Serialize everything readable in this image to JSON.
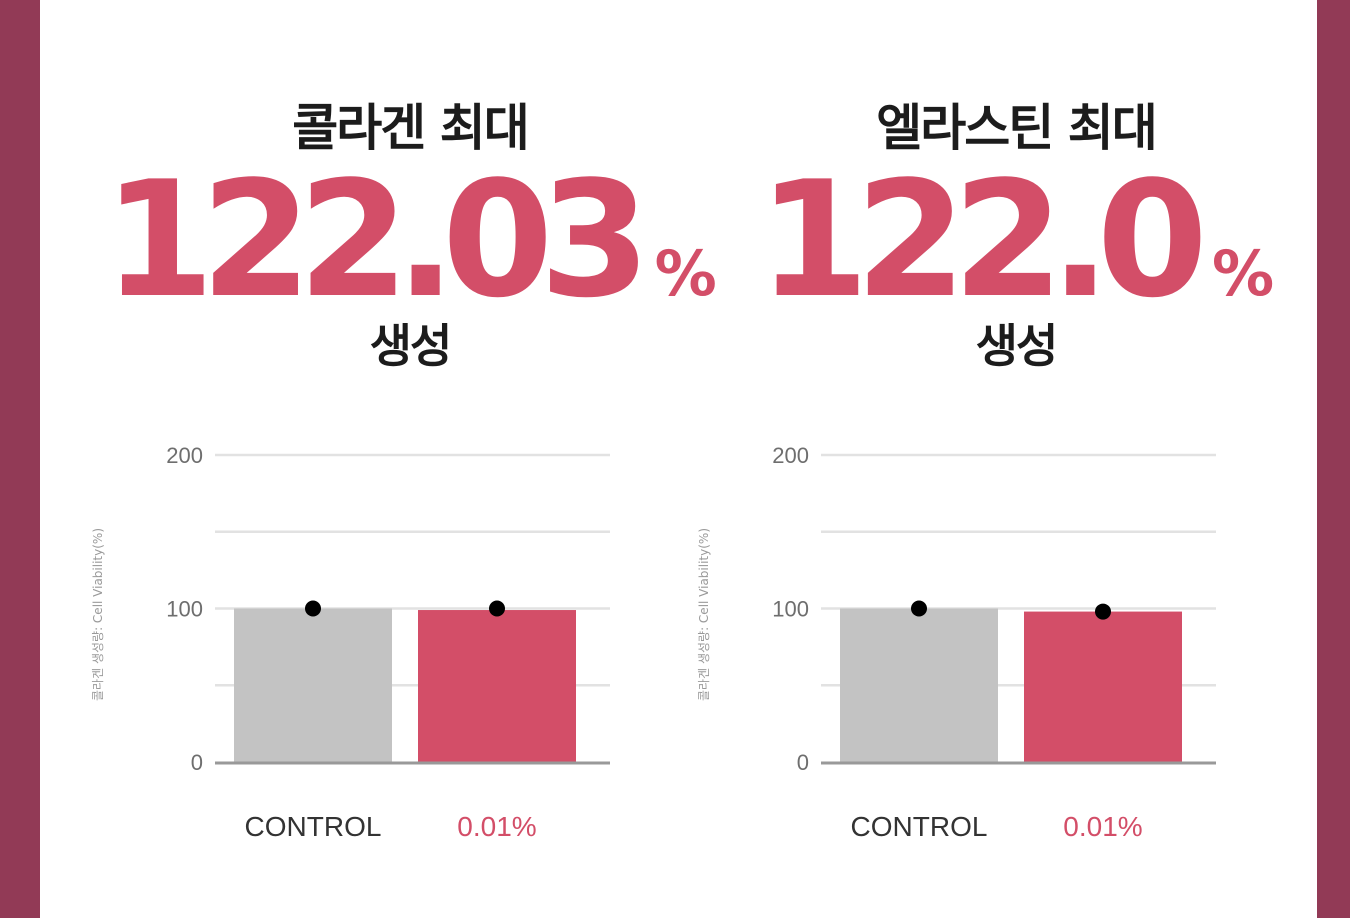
{
  "colors": {
    "frame": "#923a56",
    "accent": "#d34e68",
    "control_bar": "#c3c3c3",
    "point": "#000000"
  },
  "panels": [
    {
      "heading": "콜라겐 최대",
      "value": "122.03",
      "unit": "%",
      "suffix": "생성"
    },
    {
      "heading": "엘라스틴 최대",
      "value": "122.0",
      "unit": "%",
      "suffix": "생성"
    }
  ],
  "chart_data": [
    {
      "type": "bar",
      "ylabel": "콜라겐 생성량: Cell Viability(%)",
      "ylim": [
        0,
        200
      ],
      "yticks": [
        0,
        100,
        200
      ],
      "grid": true,
      "categories": [
        "CONTROL",
        "0.01%"
      ],
      "values": [
        100,
        99
      ],
      "points": [
        100,
        100
      ],
      "bar_colors": [
        "#c3c3c3",
        "#d34e68"
      ],
      "label_colors": [
        "#333333",
        "#d34e68"
      ]
    },
    {
      "type": "bar",
      "ylabel": "콜라겐 생성량: Cell Viability(%)",
      "ylim": [
        0,
        200
      ],
      "yticks": [
        0,
        100,
        200
      ],
      "grid": true,
      "categories": [
        "CONTROL",
        "0.01%"
      ],
      "values": [
        100,
        98
      ],
      "points": [
        100,
        98
      ],
      "bar_colors": [
        "#c3c3c3",
        "#d34e68"
      ],
      "label_colors": [
        "#333333",
        "#d34e68"
      ]
    }
  ]
}
